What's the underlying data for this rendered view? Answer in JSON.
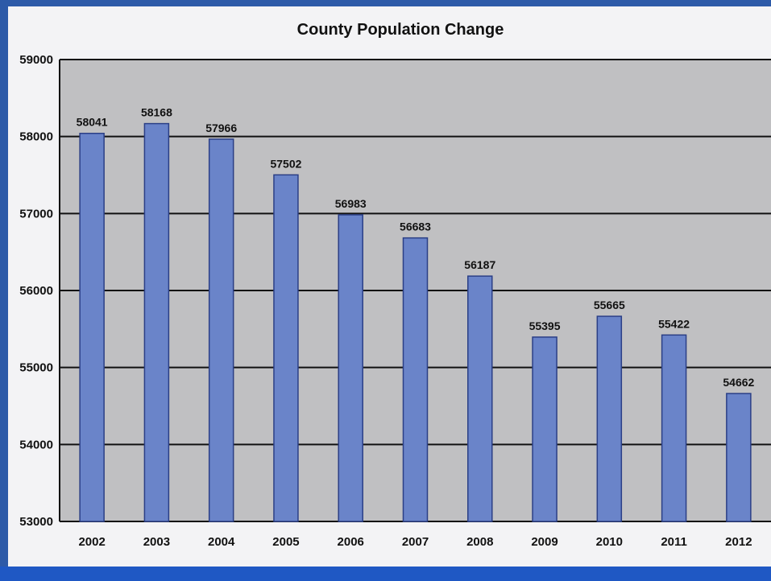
{
  "chart_data": {
    "type": "bar",
    "title": "County Population Change",
    "xlabel": "",
    "ylabel": "",
    "categories": [
      "2002",
      "2003",
      "2004",
      "2005",
      "2006",
      "2007",
      "2008",
      "2009",
      "2010",
      "2011",
      "2012"
    ],
    "values": [
      58041,
      58168,
      57966,
      57502,
      56983,
      56683,
      56187,
      55395,
      55665,
      55422,
      54662
    ],
    "data_labels": [
      "58041",
      "58168",
      "57966",
      "57502",
      "56983",
      "56683",
      "56187",
      "55395",
      "55665",
      "55422",
      "54662"
    ],
    "ylim": [
      53000,
      59000
    ],
    "yticks": [
      53000,
      54000,
      55000,
      56000,
      57000,
      58000,
      59000
    ],
    "ytick_labels": [
      "53000",
      "54000",
      "55000",
      "56000",
      "57000",
      "58000",
      "59000"
    ],
    "grid": true,
    "legend": "none",
    "colors": {
      "bar_fill": "#6a84c9",
      "bar_edge": "#2b3f86",
      "plot_bg": "#c0c0c2",
      "frame": "#2d5aa8"
    }
  }
}
